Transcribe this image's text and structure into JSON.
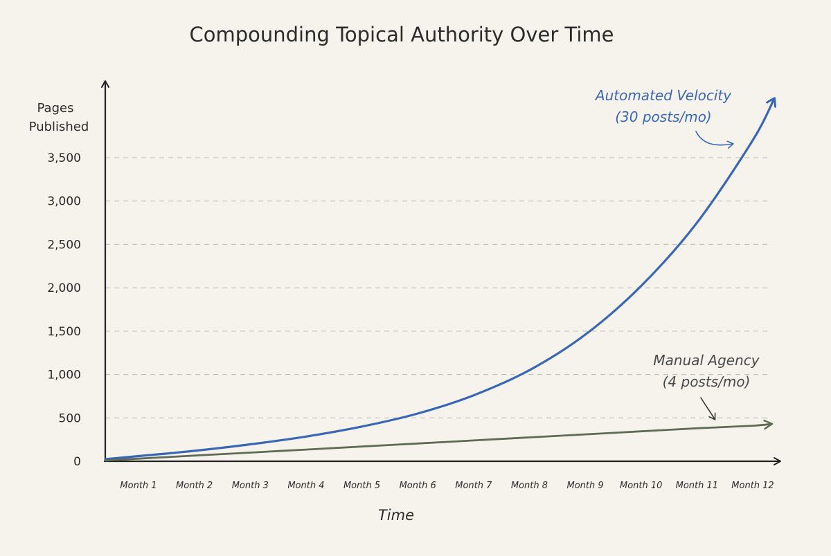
{
  "chart_data": {
    "type": "line",
    "title": "Compounding Topical Authority Over Time",
    "xlabel": "Time",
    "ylabel": [
      "Pages",
      "Published"
    ],
    "categories": [
      "Month 1",
      "Month 2",
      "Month 3",
      "Month 4",
      "Month 5",
      "Month 6",
      "Month 7",
      "Month 8",
      "Month 9",
      "Month 10",
      "Month 11",
      "Month 12"
    ],
    "ylim": [
      0,
      3500
    ],
    "yticks": [
      0,
      500,
      1000,
      1500,
      2000,
      2500,
      3000,
      3500
    ],
    "ytick_labels": [
      "0",
      "500",
      "1,000",
      "1,500",
      "2,000",
      "2,500",
      "3,000",
      "3,500"
    ],
    "grid": "dashed horizontal",
    "series": [
      {
        "name": "Automated Velocity",
        "color": "#3a67b5",
        "values": [
          60,
          120,
          195,
          285,
          400,
          550,
          760,
          1050,
          1460,
          2020,
          2750,
          3700
        ],
        "end_value": 4180
      },
      {
        "name": "Manual Agency",
        "color": "#5e6b55",
        "values": [
          30,
          65,
          100,
          135,
          170,
          205,
          240,
          275,
          310,
          345,
          380,
          410
        ],
        "end_value": 430
      }
    ],
    "annotations": [
      {
        "series": 0,
        "lines": [
          "Automated Velocity",
          "(30 posts/mo)"
        ],
        "color": "#3a67b5"
      },
      {
        "series": 1,
        "lines": [
          "Manual Agency",
          "(4 posts/mo)"
        ],
        "color": "#4a4a4a"
      }
    ]
  }
}
